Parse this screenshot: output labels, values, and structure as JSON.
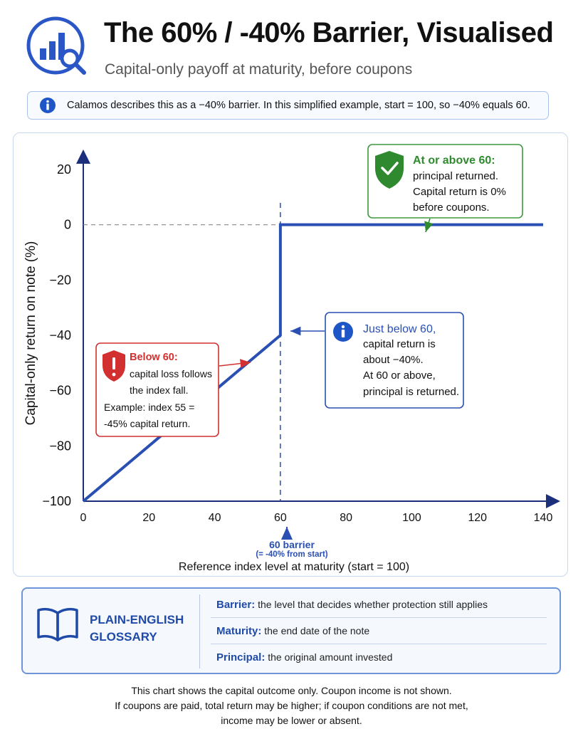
{
  "header": {
    "title": "The 60% / -40% Barrier, Visualised",
    "subtitle": "Capital-only payoff at maturity, before coupons",
    "logo_icon": "chart-magnifier-icon"
  },
  "info_bar": {
    "icon": "info-icon",
    "text": "Calamos describes this as a −40% barrier. In this simplified example, start = 100, so −40% equals 60."
  },
  "chart_data": {
    "type": "line",
    "xlabel": "Reference index level at maturity (start = 100)",
    "ylabel": "Capital-only return on note (%)",
    "xlim": [
      0,
      140
    ],
    "ylim": [
      -100,
      20
    ],
    "x_ticks": [
      "0",
      "20",
      "40",
      "60",
      "80",
      "100",
      "120",
      "140"
    ],
    "y_ticks": [
      "20",
      "0",
      "−20",
      "−40",
      "−60",
      "−80",
      "−100"
    ],
    "series": [
      {
        "color": "#2a4fb3",
        "x": [
          0,
          60,
          60,
          140
        ],
        "y": [
          -100,
          -40,
          0,
          0
        ]
      }
    ],
    "reference_lines": {
      "zero_line_y": 0,
      "barrier_x": 60
    },
    "barrier_label": {
      "line1": "60 barrier",
      "line2": "(= -40% from start)"
    },
    "annotations": [
      {
        "id": "above",
        "icon": "shield-check-icon",
        "color": "#2f8a2f",
        "title": "At or above 60:",
        "lines": [
          "principal returned.",
          "Capital return is 0%",
          "before coupons."
        ]
      },
      {
        "id": "just-below",
        "icon": "info-icon",
        "color": "#2a4fb3",
        "title": "Just below 60,",
        "lines": [
          "capital return is",
          "about −40%.",
          "At 60 or above,",
          "principal is returned."
        ]
      },
      {
        "id": "below",
        "icon": "shield-alert-icon",
        "color": "#d23030",
        "title": "Below 60:",
        "lines": [
          "capital loss follows",
          "the index fall.",
          "Example: index 55 =",
          "-45% capital return."
        ]
      }
    ],
    "grid": false,
    "legend": "none"
  },
  "glossary": {
    "title_line1": "PLAIN-ENGLISH",
    "title_line2": "GLOSSARY",
    "icon": "open-book-icon",
    "items": [
      {
        "term": "Barrier:",
        "definition": "the level that decides whether protection still applies"
      },
      {
        "term": "Maturity:",
        "definition": "the end date of the note"
      },
      {
        "term": "Principal:",
        "definition": "the original amount invested"
      }
    ]
  },
  "footer": {
    "lines": [
      "This chart shows the capital outcome only. Coupon income is not shown.",
      "If coupons are paid, total return may be higher; if coupon conditions are not met,",
      "income may be lower or absent."
    ]
  }
}
